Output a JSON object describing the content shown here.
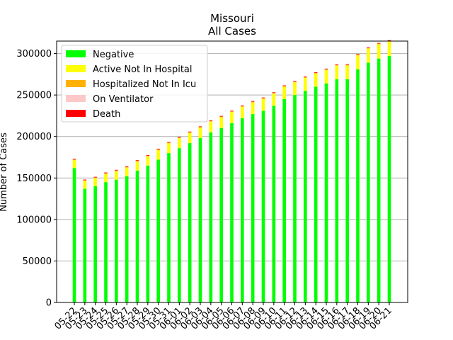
{
  "chart_data": {
    "type": "bar",
    "stacked": true,
    "title": "Missouri",
    "subtitle": "All Cases",
    "xlabel": "",
    "ylabel": "Number of Cases",
    "ylim": [
      0,
      315000
    ],
    "yticks": [
      0,
      50000,
      100000,
      150000,
      200000,
      250000,
      300000
    ],
    "ytick_labels": [
      "0",
      "50000",
      "100000",
      "150000",
      "200000",
      "250000",
      "300000"
    ],
    "grid": "horizontal",
    "legend_position": "top-left",
    "categories": [
      "05-22",
      "05-23",
      "05-24",
      "05-25",
      "05-26",
      "05-27",
      "05-28",
      "05-29",
      "05-30",
      "05-31",
      "06-01",
      "06-02",
      "06-03",
      "06-04",
      "06-05",
      "06-06",
      "06-07",
      "06-08",
      "06-09",
      "06-10",
      "06-11",
      "06-12",
      "06-13",
      "06-14",
      "06-15",
      "06-16",
      "06-17",
      "06-18",
      "06-19",
      "06-20",
      "06-21"
    ],
    "series": [
      {
        "name": "Negative",
        "color": "#00ff00",
        "values": [
          162000,
          137000,
          140000,
          145000,
          148000,
          152000,
          159000,
          165000,
          172000,
          180000,
          186000,
          192000,
          198000,
          205000,
          210000,
          216000,
          222000,
          227000,
          231000,
          237000,
          245000,
          250000,
          255000,
          260000,
          264000,
          269000,
          269000,
          281000,
          289000,
          294000,
          297000
        ]
      },
      {
        "name": "Active Not In Hospital",
        "color": "#ffff00",
        "values": [
          9500,
          9500,
          9800,
          10000,
          10200,
          10500,
          10800,
          11000,
          11500,
          11800,
          12000,
          12300,
          12600,
          12900,
          13200,
          13500,
          13800,
          14100,
          14400,
          14700,
          15000,
          15300,
          15600,
          15900,
          16200,
          16400,
          16600,
          16800,
          17000,
          17200,
          17500
        ]
      },
      {
        "name": "Hospitalized Not In Icu",
        "color": "#ffb000",
        "values": [
          700,
          700,
          700,
          700,
          700,
          700,
          700,
          700,
          700,
          700,
          700,
          700,
          700,
          700,
          700,
          700,
          700,
          700,
          700,
          700,
          700,
          700,
          700,
          700,
          700,
          700,
          700,
          700,
          700,
          700,
          700
        ]
      },
      {
        "name": "On Ventilator",
        "color": "#ffc8c8",
        "values": [
          100,
          100,
          100,
          100,
          100,
          100,
          100,
          100,
          100,
          100,
          100,
          100,
          100,
          100,
          100,
          100,
          100,
          100,
          100,
          100,
          100,
          100,
          100,
          100,
          100,
          100,
          100,
          100,
          100,
          100,
          100
        ]
      },
      {
        "name": "Death",
        "color": "#ff0000",
        "values": [
          800,
          800,
          800,
          800,
          800,
          800,
          800,
          800,
          800,
          800,
          800,
          800,
          800,
          800,
          800,
          800,
          800,
          800,
          800,
          800,
          800,
          800,
          800,
          800,
          800,
          800,
          800,
          800,
          800,
          800,
          800
        ]
      }
    ]
  }
}
